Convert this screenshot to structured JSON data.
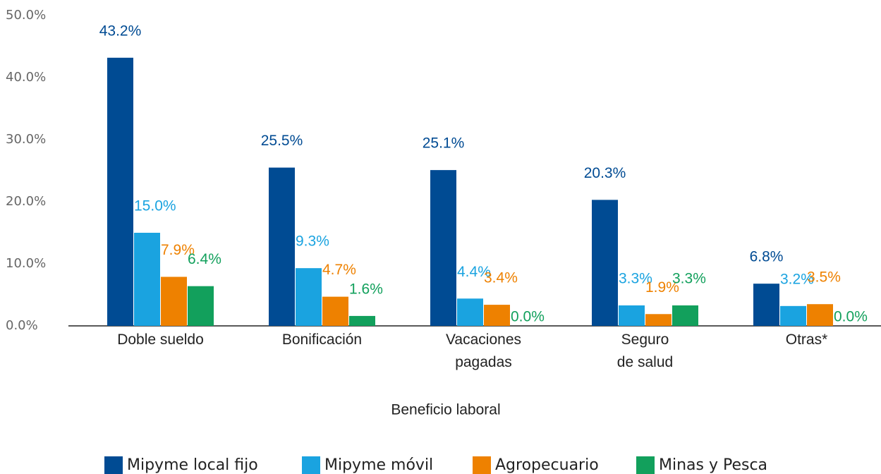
{
  "chart_data": {
    "type": "bar",
    "x_label": "Beneficio laboral",
    "categories": [
      [
        "Doble sueldo"
      ],
      [
        "Bonificación"
      ],
      [
        "Vacaciones",
        "pagadas"
      ],
      [
        "Seguro",
        "de salud"
      ],
      [
        "Otras*"
      ]
    ],
    "series": [
      {
        "name": "Mipyme local fijo",
        "color": "#004b93",
        "values": [
          43.2,
          25.5,
          25.1,
          20.3,
          6.8
        ],
        "value_labels": [
          "43.2%",
          "25.5%",
          "25.1%",
          "20.3%",
          "6.8%"
        ]
      },
      {
        "name": "Mipyme móvil",
        "color": "#1aa3e0",
        "values": [
          15.0,
          9.3,
          4.4,
          3.3,
          3.2
        ],
        "value_labels": [
          "15.0%",
          "9.3%",
          "4.4%",
          "3.3%",
          "3.2%"
        ]
      },
      {
        "name": "Agropecuario",
        "color": "#ee8100",
        "values": [
          7.9,
          4.7,
          3.4,
          1.9,
          3.5
        ],
        "value_labels": [
          "7.9%",
          "4.7%",
          "3.4%",
          "1.9%",
          "3.5%"
        ]
      },
      {
        "name": "Minas y Pesca",
        "color": "#12a05c",
        "values": [
          6.4,
          1.6,
          0.0,
          3.3,
          0.0
        ],
        "value_labels": [
          "6.4%",
          "1.6%",
          "0.0%",
          "3.3%",
          "0.0%"
        ]
      }
    ],
    "ylim": [
      0,
      50
    ],
    "yticks": [
      {
        "value": 0,
        "label": "0.0%"
      },
      {
        "value": 10,
        "label": "10.0%"
      },
      {
        "value": 20,
        "label": "20.0%"
      },
      {
        "value": 30,
        "label": "30.0%"
      },
      {
        "value": 40,
        "label": "40.0%"
      },
      {
        "value": 50,
        "label": "50.0%"
      }
    ],
    "grid": false,
    "legend": "bottom"
  }
}
